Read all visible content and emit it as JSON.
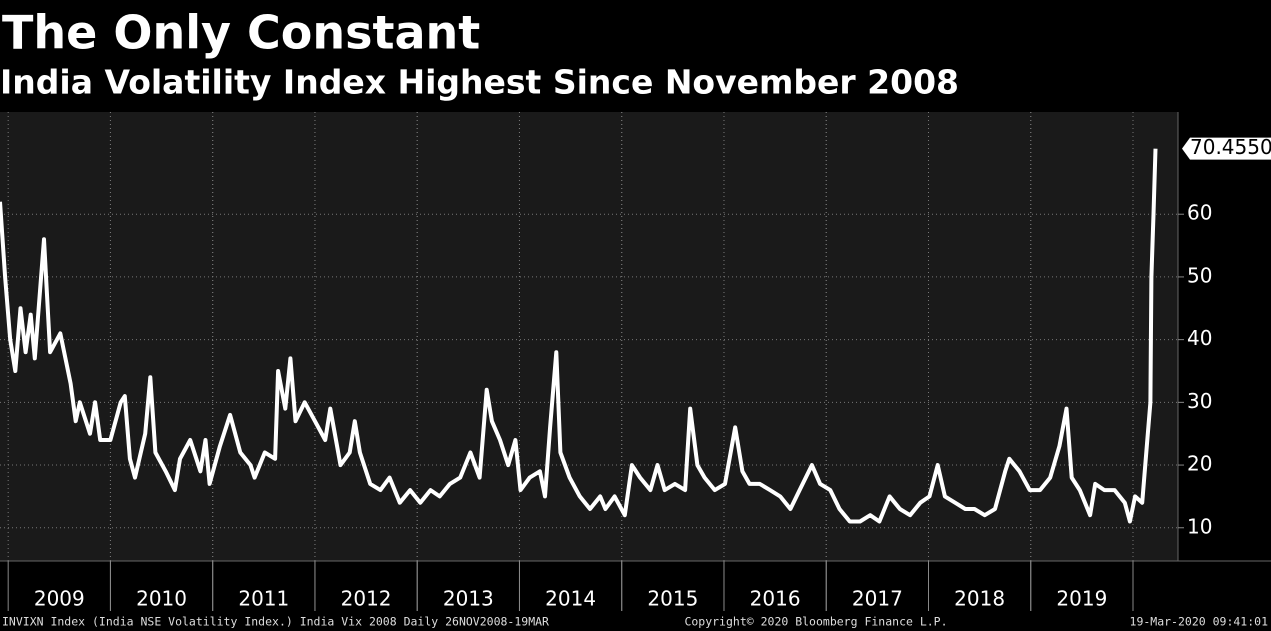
{
  "chart_data": {
    "type": "line",
    "title": "The Only Constant",
    "subtitle": "India Volatility Index Highest Since November 2008",
    "footer_left": "INVIXN Index (India NSE Volatility Index.) India Vix 2008  Daily 26NOV2008-19MAR",
    "footer_center": "Copyright© 2020 Bloomberg Finance L.P.",
    "footer_right": "19-Mar-2020 09:41:01",
    "last_value_label": "70.4550",
    "color": "#ffffff",
    "grid": true,
    "xlim": [
      2008.92,
      2020.44
    ],
    "ylim": [
      4.7,
      76.3
    ],
    "yticks": [
      10,
      20,
      30,
      40,
      50,
      60
    ],
    "xticks": [
      {
        "value": 2009.5,
        "label": "2009"
      },
      {
        "value": 2010.5,
        "label": "2010"
      },
      {
        "value": 2011.5,
        "label": "2011"
      },
      {
        "value": 2012.5,
        "label": "2012"
      },
      {
        "value": 2013.5,
        "label": "2013"
      },
      {
        "value": 2014.5,
        "label": "2014"
      },
      {
        "value": 2015.5,
        "label": "2015"
      },
      {
        "value": 2016.5,
        "label": "2016"
      },
      {
        "value": 2017.5,
        "label": "2017"
      },
      {
        "value": 2018.5,
        "label": "2018"
      },
      {
        "value": 2019.5,
        "label": "2019"
      }
    ],
    "x": [
      2008.92,
      2008.97,
      2009.02,
      2009.07,
      2009.12,
      2009.17,
      2009.22,
      2009.26,
      2009.35,
      2009.41,
      2009.51,
      2009.61,
      2009.66,
      2009.7,
      2009.8,
      2009.85,
      2009.9,
      2010.0,
      2010.1,
      2010.14,
      2010.19,
      2010.24,
      2010.34,
      2010.39,
      2010.44,
      2010.54,
      2010.63,
      2010.68,
      2010.78,
      2010.88,
      2010.93,
      2010.97,
      2011.07,
      2011.17,
      2011.27,
      2011.37,
      2011.41,
      2011.51,
      2011.61,
      2011.64,
      2011.71,
      2011.76,
      2011.81,
      2011.9,
      2012.0,
      2012.1,
      2012.15,
      2012.25,
      2012.34,
      2012.39,
      2012.44,
      2012.54,
      2012.64,
      2012.73,
      2012.83,
      2012.93,
      2013.03,
      2013.13,
      2013.22,
      2013.32,
      2013.42,
      2013.52,
      2013.61,
      2013.68,
      2013.73,
      2013.81,
      2013.89,
      2013.96,
      2014.01,
      2014.1,
      2014.2,
      2014.25,
      2014.3,
      2014.36,
      2014.4,
      2014.49,
      2014.59,
      2014.69,
      2014.79,
      2014.84,
      2014.93,
      2015.03,
      2015.1,
      2015.18,
      2015.28,
      2015.35,
      2015.42,
      2015.52,
      2015.62,
      2015.67,
      2015.74,
      2015.81,
      2015.91,
      2016.01,
      2016.11,
      2016.18,
      2016.25,
      2016.35,
      2016.45,
      2016.55,
      2016.65,
      2016.74,
      2016.86,
      2016.94,
      2017.04,
      2017.13,
      2017.23,
      2017.33,
      2017.43,
      2017.52,
      2017.62,
      2017.72,
      2017.82,
      2017.92,
      2018.01,
      2018.09,
      2018.16,
      2018.26,
      2018.36,
      2018.45,
      2018.55,
      2018.65,
      2018.75,
      2018.79,
      2018.89,
      2018.99,
      2019.09,
      2019.19,
      2019.28,
      2019.35,
      2019.4,
      2019.48,
      2019.58,
      2019.63,
      2019.72,
      2019.82,
      2019.92,
      2019.97,
      2020.02,
      2020.09,
      2020.14,
      2020.17,
      2020.18,
      2020.2,
      2020.22
    ],
    "values": [
      62,
      50,
      40,
      35,
      45,
      38,
      44,
      37,
      56,
      38,
      41,
      33,
      27,
      30,
      25,
      30,
      24,
      24,
      30,
      31,
      21,
      18,
      25,
      34,
      22,
      19,
      16,
      21,
      24,
      19,
      24,
      17,
      23,
      28,
      22,
      20,
      18,
      22,
      21,
      35,
      29,
      37,
      27,
      30,
      27,
      24,
      29,
      20,
      22,
      27,
      22,
      17,
      16,
      18,
      14,
      16,
      14,
      16,
      15,
      17,
      18,
      22,
      18,
      32,
      27,
      24,
      20,
      24,
      16,
      18,
      19,
      15,
      26,
      38,
      22,
      18,
      15,
      13,
      15,
      13,
      15,
      12,
      20,
      18,
      16,
      20,
      16,
      17,
      16,
      29,
      20,
      18,
      16,
      17,
      26,
      19,
      17,
      17,
      16,
      15,
      13,
      16,
      20,
      17,
      16,
      13,
      11,
      11,
      12,
      11,
      15,
      13,
      12,
      14,
      15,
      20,
      15,
      14,
      13,
      13,
      12,
      13,
      19,
      21,
      19,
      16,
      16,
      18,
      23,
      29,
      18,
      16,
      12,
      17,
      16,
      16,
      14,
      11,
      15,
      14,
      24,
      30,
      50,
      60,
      70.455
    ]
  }
}
